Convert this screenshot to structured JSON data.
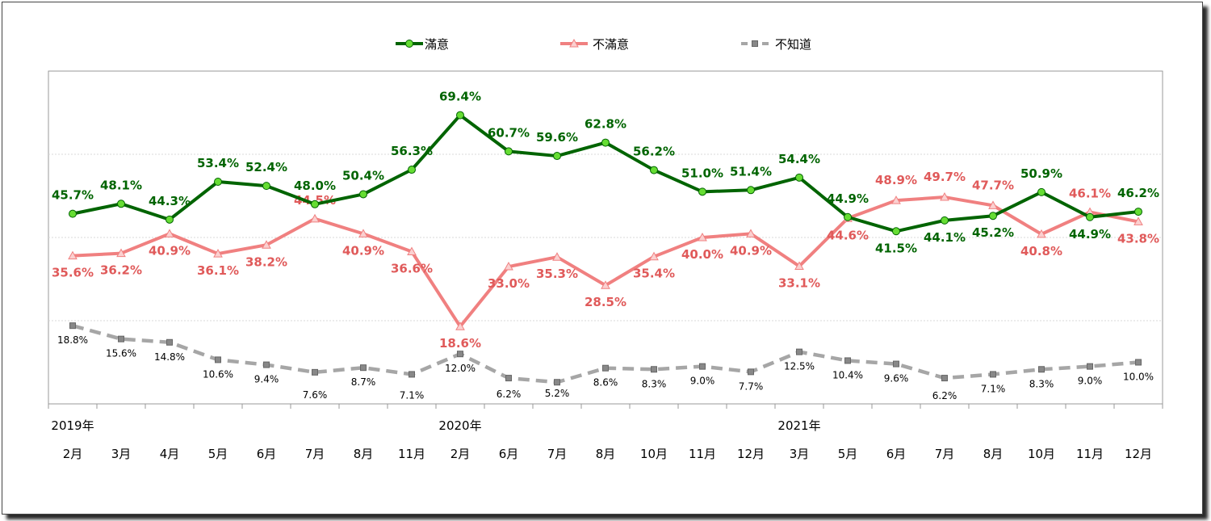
{
  "chart_data": {
    "type": "line",
    "title": "",
    "xlabel": "",
    "ylabel": "",
    "ylim": [
      0,
      80
    ],
    "grid": true,
    "legend_position": "top-center",
    "year_labels": [
      {
        "index": 0,
        "label": "2019年"
      },
      {
        "index": 8,
        "label": "2020年"
      },
      {
        "index": 15,
        "label": "2021年"
      }
    ],
    "categories": [
      "2月",
      "3月",
      "4月",
      "5月",
      "6月",
      "7月",
      "8月",
      "11月",
      "2月",
      "6月",
      "7月",
      "8月",
      "10月",
      "11月",
      "12月",
      "3月",
      "5月",
      "6月",
      "7月",
      "8月",
      "10月",
      "11月",
      "12月"
    ],
    "series": [
      {
        "name": "滿意",
        "color": "#006400",
        "marker_color": "#66dd33",
        "marker": "circle",
        "dash": false,
        "values": [
          45.7,
          48.1,
          44.3,
          53.4,
          52.4,
          48.0,
          50.4,
          56.3,
          69.4,
          60.7,
          59.6,
          62.8,
          56.2,
          51.0,
          51.4,
          54.4,
          44.9,
          41.5,
          44.1,
          45.2,
          50.9,
          44.9,
          46.2
        ],
        "labels": [
          "45.7%",
          "48.1%",
          "44.3%",
          "53.4%",
          "52.4%",
          "48.0%",
          "50.4%",
          "56.3%",
          "69.4%",
          "60.7%",
          "59.6%",
          "62.8%",
          "56.2%",
          "51.0%",
          "51.4%",
          "54.4%",
          "44.9%",
          "41.5%",
          "44.1%",
          "45.2%",
          "50.9%",
          "44.9%",
          "46.2%"
        ]
      },
      {
        "name": "不滿意",
        "color": "#f08080",
        "label_color": "#e05a5a",
        "marker": "triangle",
        "dash": false,
        "values": [
          35.6,
          36.2,
          40.9,
          36.1,
          38.2,
          44.5,
          40.9,
          36.6,
          18.6,
          33.0,
          35.3,
          28.5,
          35.4,
          40.0,
          40.9,
          33.1,
          44.6,
          48.9,
          49.7,
          47.7,
          40.8,
          46.1,
          43.8
        ],
        "labels": [
          "35.6%",
          "36.2%",
          "40.9%",
          "36.1%",
          "38.2%",
          "44.5%",
          "40.9%",
          "36.6%",
          "18.6%",
          "33.0%",
          "35.3%",
          "28.5%",
          "35.4%",
          "40.0%",
          "40.9%",
          "33.1%",
          "44.6%",
          "48.9%",
          "49.7%",
          "47.7%",
          "40.8%",
          "46.1%",
          "43.8%"
        ]
      },
      {
        "name": "不知道",
        "color": "#a6a6a6",
        "marker": "square",
        "dash": true,
        "values": [
          18.8,
          15.6,
          14.8,
          10.6,
          9.4,
          7.6,
          8.7,
          7.1,
          12.0,
          6.2,
          5.2,
          8.6,
          8.3,
          9.0,
          7.7,
          12.5,
          10.4,
          9.6,
          6.2,
          7.1,
          8.3,
          9.0,
          10.0
        ],
        "labels": [
          "18.8%",
          "15.6%",
          "14.8%",
          "10.6%",
          "9.4%",
          "7.6%",
          "8.7%",
          "7.1%",
          "12.0%",
          "6.2%",
          "5.2%",
          "8.6%",
          "8.3%",
          "9.0%",
          "7.7%",
          "12.5%",
          "10.4%",
          "9.6%",
          "6.2%",
          "7.1%",
          "8.3%",
          "9.0%",
          "10.0%"
        ]
      }
    ]
  }
}
